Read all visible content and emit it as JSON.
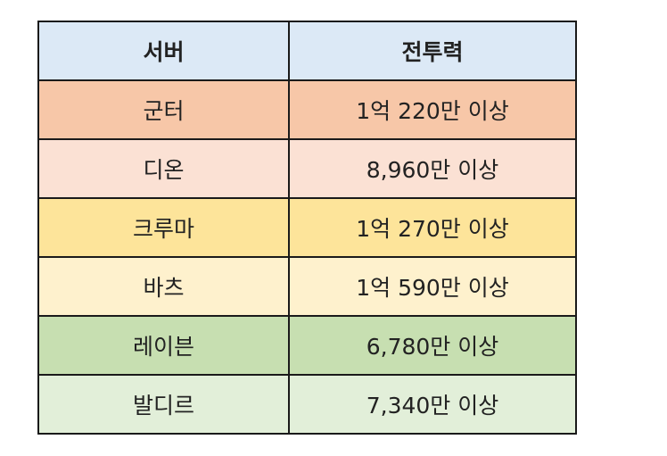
{
  "table": {
    "headers": [
      "서버",
      "전투력"
    ],
    "header_color": "#dce9f6",
    "rows": [
      {
        "server": "군터",
        "power": "1억 220만 이상",
        "color": "#f7c7a8"
      },
      {
        "server": "디온",
        "power": "8,960만 이상",
        "color": "#fbe1d4"
      },
      {
        "server": "크루마",
        "power": "1억 270만 이상",
        "color": "#fde49a"
      },
      {
        "server": "바츠",
        "power": "1억 590만 이상",
        "color": "#fef1cd"
      },
      {
        "server": "레이븐",
        "power": "6,780만 이상",
        "color": "#c7dfb1"
      },
      {
        "server": "발디르",
        "power": "7,340만 이상",
        "color": "#e2efd9"
      }
    ]
  }
}
